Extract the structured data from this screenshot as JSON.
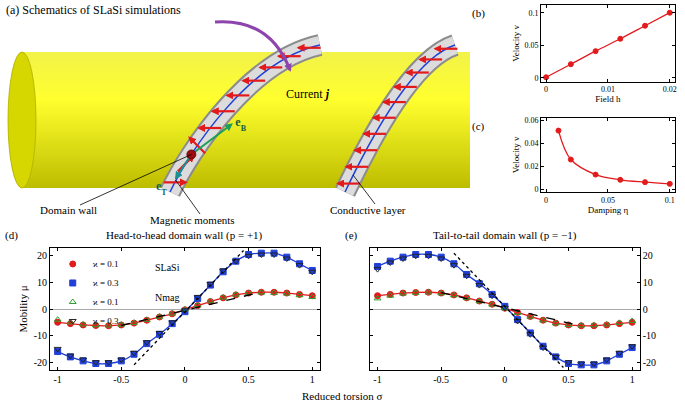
{
  "schematic": {
    "title": "(a) Schematics of SLaSi simulations",
    "current": {
      "text": "Current",
      "symbol": "j"
    },
    "e_b": {
      "base": "e",
      "sub": "B"
    },
    "e_t": {
      "base": "e",
      "sub": "T"
    },
    "domain_wall": "Domain wall",
    "magnetic_moments": "Magnetic moments",
    "conductive_layer": "Conductive layer"
  },
  "shared_xlabel": "Reduced torsion σ",
  "chart_data": [
    {
      "panel": "(b)",
      "type": "line",
      "xlabel": "Field h",
      "ylabel": "Velocity v",
      "grid": false,
      "xlim": [
        -0.0008,
        0.0208
      ],
      "xticks": [
        0,
        0.01,
        0.02
      ],
      "ylim": [
        -0.006,
        0.112
      ],
      "yticks": [
        0,
        0.05,
        0.1
      ],
      "x": [
        0,
        0.004,
        0.008,
        0.012,
        0.016,
        0.02
      ],
      "series": [
        {
          "color": "#e31a1c",
          "marker": "circle",
          "line_style": "solid",
          "values": [
            0.001,
            0.021,
            0.041,
            0.06,
            0.08,
            0.1
          ]
        }
      ]
    },
    {
      "panel": "(c)",
      "type": "line",
      "xlabel": "Damping η",
      "ylabel": "Velocity v",
      "grid": false,
      "xlim": [
        -0.004,
        0.104
      ],
      "xticks": [
        0,
        0.05,
        0.1
      ],
      "ylim": [
        -0.002,
        0.062
      ],
      "yticks": [
        0,
        0.02,
        0.04,
        0.06
      ],
      "x": [
        0.01,
        0.02,
        0.04,
        0.06,
        0.08,
        0.1
      ],
      "series": [
        {
          "color": "#e31a1c",
          "marker": "circle",
          "line_style": "solid",
          "values": [
            0.051,
            0.026,
            0.013,
            0.0085,
            0.0065,
            0.005
          ]
        }
      ]
    },
    {
      "panel": "(d)",
      "title": "Head-to-head domain wall (p = +1)",
      "type": "line",
      "ylabel": "Mobility μ",
      "grid": false,
      "legend": "top left",
      "xlim": [
        -1.06,
        1.06
      ],
      "xticks": [
        -1,
        -0.5,
        0,
        0.5,
        1
      ],
      "ylim": [
        -23,
        23
      ],
      "yticks": [
        -20,
        -10,
        0,
        10,
        20
      ],
      "x": [
        -1,
        -0.9,
        -0.8,
        -0.7,
        -0.6,
        -0.5,
        -0.4,
        -0.3,
        -0.2,
        -0.1,
        0,
        0.1,
        0.2,
        0.3,
        0.4,
        0.5,
        0.6,
        0.7,
        0.8,
        0.9,
        1
      ],
      "series": [
        {
          "name": "ϰ = 0.1",
          "group": "SLaSi",
          "type": "line",
          "color": "#e31a1c",
          "marker": "circle",
          "line_style": "solid",
          "values": [
            -5,
            -5.5,
            -6,
            -6.2,
            -6.3,
            -6,
            -5.3,
            -4.2,
            -3,
            -1.8,
            -0.3,
            1.3,
            2.8,
            4.2,
            5.3,
            6,
            6.3,
            6.3,
            6,
            5.5,
            5
          ]
        },
        {
          "name": "ϰ = 0.3",
          "group": "SLaSi",
          "type": "line",
          "color": "#1f3fd8",
          "marker": "square",
          "line_style": "solid",
          "values": [
            -16,
            -18,
            -19.5,
            -20.5,
            -20.5,
            -19.5,
            -17,
            -13,
            -9.5,
            -5.5,
            -1,
            4,
            9,
            14,
            18,
            20.5,
            21,
            21,
            19.5,
            17,
            14.5
          ]
        },
        {
          "name": "ϰ = 0.1",
          "group": "Nmag",
          "type": "scatter",
          "color": "#2ca02c",
          "marker": "triangle-up-open",
          "values": [
            -4,
            -5,
            -5.8,
            -6.1,
            -6.2,
            -5.9,
            -5.2,
            -4.1,
            -2.9,
            -1.7,
            -0.2,
            1.4,
            2.9,
            4.3,
            5.4,
            6,
            6.2,
            6.1,
            5.8,
            5.2,
            4.5
          ]
        },
        {
          "name": "ϰ = 0.3",
          "group": "Nmag",
          "type": "scatter",
          "color": "#222222",
          "marker": "triangle-down-open",
          "values": [
            -15,
            -17.5,
            -19,
            -20,
            -20,
            -19,
            -16.5,
            -12.5,
            -9,
            -5,
            -0.5,
            4.5,
            9.5,
            14.5,
            18,
            20,
            20.5,
            20.5,
            19,
            16.5,
            14
          ]
        },
        {
          "type": "line",
          "color": "#000000",
          "line_style": "dashed",
          "x": [
            -0.5,
            0.55
          ],
          "values": [
            -6.2,
            5.8
          ]
        },
        {
          "type": "line",
          "color": "#000000",
          "line_style": "dotted",
          "x": [
            -0.4,
            0.46
          ],
          "values": [
            -21,
            22
          ]
        }
      ]
    },
    {
      "panel": "(e)",
      "title": "Tail-to-tail domain wall (p = −1)",
      "type": "line",
      "grid": false,
      "xlim": [
        -1.06,
        1.06
      ],
      "xticks": [
        -1,
        -0.5,
        0,
        0.5,
        1
      ],
      "ylim": [
        -23,
        23
      ],
      "yticks": [
        -20,
        -10,
        0,
        10,
        20
      ],
      "x": [
        -1,
        -0.9,
        -0.8,
        -0.7,
        -0.6,
        -0.5,
        -0.4,
        -0.3,
        -0.2,
        -0.1,
        0,
        0.1,
        0.2,
        0.3,
        0.4,
        0.5,
        0.6,
        0.7,
        0.8,
        0.9,
        1
      ],
      "series": [
        {
          "type": "line",
          "color": "#e31a1c",
          "marker": "circle",
          "line_style": "solid",
          "values": [
            5,
            5.5,
            6,
            6.2,
            6.3,
            6,
            5.3,
            4.2,
            3,
            1.8,
            0.3,
            -1.3,
            -2.8,
            -4.2,
            -5.3,
            -6,
            -6.3,
            -6.3,
            -6,
            -5.5,
            -5
          ]
        },
        {
          "type": "line",
          "color": "#1f3fd8",
          "marker": "square",
          "line_style": "solid",
          "values": [
            16,
            18,
            19.5,
            20.5,
            20.5,
            19.5,
            17,
            13,
            9.5,
            5.5,
            1,
            -4,
            -9,
            -14,
            -18,
            -20.5,
            -21,
            -21,
            -19.5,
            -17,
            -14.5
          ]
        },
        {
          "type": "scatter",
          "color": "#2ca02c",
          "marker": "triangle-up-open",
          "values": [
            4,
            5,
            5.8,
            6.1,
            6.2,
            5.9,
            5.2,
            4.1,
            2.9,
            1.7,
            0.2,
            -1.4,
            -2.9,
            -4.3,
            -5.4,
            -6,
            -6.2,
            -6.1,
            -5.8,
            -5.2,
            -4.5
          ]
        },
        {
          "type": "scatter",
          "color": "#222222",
          "marker": "triangle-down-open",
          "values": [
            15,
            17.5,
            19,
            20,
            20,
            19,
            16.5,
            12.5,
            9,
            5,
            0.5,
            -4.5,
            -9.5,
            -14.5,
            -18,
            -20,
            -20.5,
            -20.5,
            -19,
            -16.5,
            -14
          ]
        },
        {
          "type": "line",
          "color": "#000000",
          "line_style": "dashed",
          "x": [
            -0.5,
            0.55
          ],
          "values": [
            6.2,
            -5.8
          ]
        },
        {
          "type": "line",
          "color": "#000000",
          "line_style": "dotted",
          "x": [
            -0.4,
            0.46
          ],
          "values": [
            21,
            -22
          ]
        }
      ]
    }
  ]
}
